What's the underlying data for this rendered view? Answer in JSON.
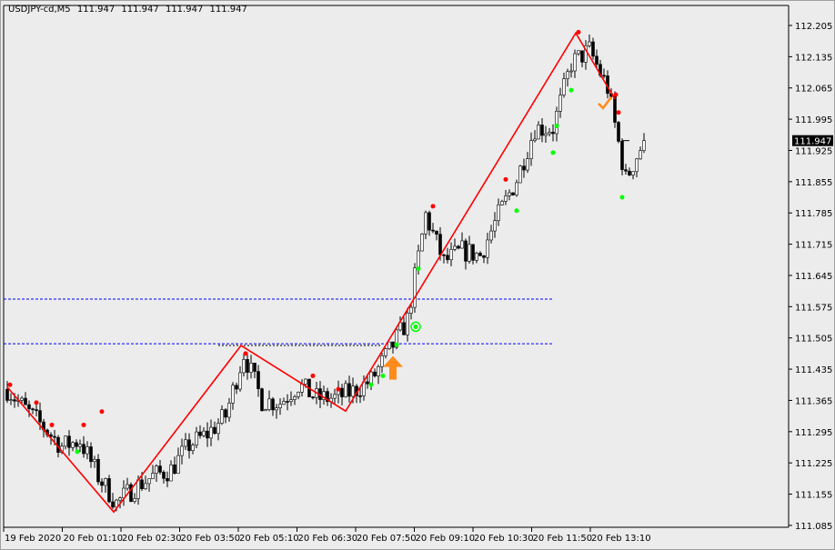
{
  "header": {
    "symbol": "USDJPY-cd,M5",
    "ohlc": [
      "111.947",
      "111.947",
      "111.947",
      "111.947"
    ]
  },
  "colors": {
    "background": "#ececec",
    "zigzag": "#ff0000",
    "level_line": "#0000ff",
    "bull_candle": "#ffffff",
    "bear_candle": "#000000",
    "dot_high": "#ff0000",
    "dot_low": "#00ff00",
    "arrow": "#ff8c1a",
    "price_tag": "#000000"
  },
  "chart_data": {
    "type": "candlestick",
    "timeframe": "M5",
    "current_price": "111.947",
    "y_ticks": [
      "112.205",
      "112.135",
      "112.065",
      "111.995",
      "111.925",
      "111.855",
      "111.785",
      "111.715",
      "111.645",
      "111.575",
      "111.505",
      "111.435",
      "111.365",
      "111.295",
      "111.225",
      "111.155",
      "111.085"
    ],
    "ylim": [
      111.085,
      112.225
    ],
    "x_ticks": [
      "19 Feb 2020",
      "20 Feb 01:10",
      "20 Feb 02:30",
      "20 Feb 03:50",
      "20 Feb 05:10",
      "20 Feb 06:30",
      "20 Feb 07:50",
      "20 Feb 09:10",
      "20 Feb 10:30",
      "20 Feb 11:50",
      "20 Feb 13:10"
    ],
    "approx_closes_every_25min": [
      111.39,
      111.345,
      111.305,
      111.262,
      111.275,
      111.195,
      111.135,
      111.17,
      111.195,
      111.21,
      111.265,
      111.29,
      111.33,
      111.47,
      111.365,
      111.36,
      111.4,
      111.37,
      111.37,
      111.385,
      111.41,
      111.475,
      111.545,
      111.78,
      111.675,
      111.7,
      111.69,
      111.78,
      111.86,
      111.975,
      111.975,
      112.12,
      112.15,
      112.065,
      111.86,
      111.947
    ],
    "zigzag_prices": [
      111.395,
      111.115,
      111.488,
      111.341,
      112.188,
      112.04
    ],
    "levels": [
      {
        "price": 111.592,
        "style": "blue-dashed"
      },
      {
        "price": 111.492,
        "style": "blue-dashed"
      },
      {
        "price": 111.488,
        "style": "black-dashed"
      }
    ],
    "signals": [
      {
        "type": "up-arrow",
        "price": 111.44
      },
      {
        "type": "check",
        "price": 112.03
      },
      {
        "type": "circle",
        "price": 111.53
      }
    ]
  }
}
